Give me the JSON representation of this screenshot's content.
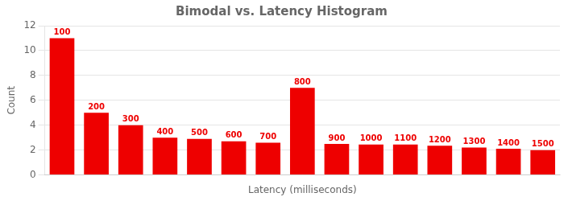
{
  "chart_data": {
    "type": "bar",
    "title": "Bimodal vs. Latency Histogram",
    "xlabel": "Latency (milliseconds)",
    "ylabel": "Count",
    "categories": [
      "100",
      "200",
      "300",
      "400",
      "500",
      "600",
      "700",
      "800",
      "900",
      "1000",
      "1100",
      "1200",
      "1300",
      "1400",
      "1500"
    ],
    "values": [
      11.0,
      5.0,
      4.0,
      3.0,
      2.9,
      2.7,
      2.6,
      7.0,
      2.5,
      2.45,
      2.45,
      2.35,
      2.2,
      2.1,
      2.0
    ],
    "color": "#EE0000",
    "ylim": [
      0,
      12
    ],
    "yticks": [
      0,
      2,
      4,
      6,
      8,
      10,
      12
    ],
    "grid": true,
    "tick_labels": "y"
  }
}
